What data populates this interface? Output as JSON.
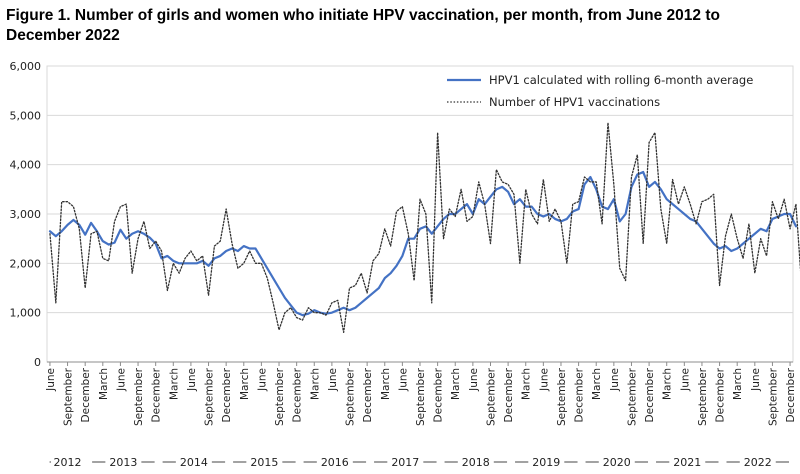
{
  "title": "Figure 1. Number of girls and women who initiate HPV vaccination, per month, from June 2012  to December 2022",
  "chart_data": {
    "type": "line",
    "title": "Figure 1. Number of girls and women who initiate HPV vaccination, per month, from June 2012  to December 2022",
    "ylim": [
      0,
      6000
    ],
    "yticks": [
      "0",
      "1,000",
      "2,000",
      "3,000",
      "4,000",
      "5,000",
      "6,000"
    ],
    "ytick_values": [
      0,
      1000,
      2000,
      3000,
      4000,
      5000,
      6000
    ],
    "grid": true,
    "legend_position": "top-right",
    "x_start": "2012-06",
    "x_end": "2022-12",
    "month_tick_labels": [
      "June",
      "September",
      "December",
      "March"
    ],
    "years": [
      "2012",
      "2013",
      "2014",
      "2015",
      "2016",
      "2017",
      "2018",
      "2019",
      "2020",
      "2021",
      "2022"
    ],
    "series": [
      {
        "name": "HPV1 calculated with rolling 6-month average",
        "style": "solid",
        "color": "#4472C4",
        "values": [
          2650,
          2550,
          2650,
          2780,
          2880,
          2780,
          2580,
          2820,
          2650,
          2450,
          2380,
          2420,
          2680,
          2500,
          2600,
          2650,
          2600,
          2520,
          2400,
          2100,
          2150,
          2050,
          2000,
          2000,
          2000,
          2000,
          2050,
          1950,
          2100,
          2150,
          2250,
          2300,
          2250,
          2350,
          2300,
          2300,
          2100,
          1900,
          1700,
          1500,
          1300,
          1150,
          1000,
          950,
          980,
          1050,
          1000,
          980,
          1000,
          1050,
          1100,
          1050,
          1100,
          1200,
          1300,
          1400,
          1500,
          1700,
          1800,
          1950,
          2150,
          2500,
          2500,
          2700,
          2750,
          2600,
          2750,
          2900,
          3000,
          3000,
          3100,
          3200,
          3000,
          3300,
          3200,
          3350,
          3500,
          3550,
          3450,
          3200,
          3300,
          3150,
          3150,
          3000,
          2950,
          3000,
          2900,
          2850,
          2900,
          3050,
          3100,
          3600,
          3750,
          3500,
          3150,
          3100,
          3300,
          2850,
          3000,
          3550,
          3800,
          3850,
          3550,
          3650,
          3500,
          3300,
          3200,
          3100,
          3000,
          2900,
          2850,
          2700,
          2550,
          2400,
          2300,
          2350,
          2250,
          2300,
          2400,
          2500,
          2600,
          2700,
          2650,
          2900,
          2950,
          3000,
          3000,
          2750
        ]
      },
      {
        "name": "Number of HPV1 vaccinations",
        "style": "dotted",
        "color": "#333333",
        "values": [
          2600,
          1200,
          3250,
          3250,
          3150,
          2700,
          1500,
          2600,
          2650,
          2100,
          2050,
          2850,
          3150,
          3200,
          1800,
          2500,
          2850,
          2300,
          2450,
          2250,
          1450,
          2000,
          1800,
          2100,
          2250,
          2050,
          2150,
          1350,
          2350,
          2450,
          3100,
          2400,
          1900,
          2000,
          2250,
          2000,
          2000,
          1700,
          1200,
          650,
          1000,
          1100,
          900,
          850,
          1100,
          1000,
          1000,
          950,
          1200,
          1250,
          600,
          1500,
          1550,
          1800,
          1400,
          2050,
          2200,
          2700,
          2350,
          3050,
          3150,
          2600,
          1650,
          3300,
          3000,
          1200,
          4650,
          2500,
          3100,
          2950,
          3500,
          2850,
          2950,
          3650,
          3200,
          2400,
          3900,
          3650,
          3600,
          3400,
          2000,
          3500,
          3000,
          2800,
          3700,
          2850,
          3100,
          2850,
          2000,
          3200,
          3250,
          3750,
          3650,
          3650,
          2800,
          4850,
          3600,
          1900,
          1650,
          3750,
          4200,
          2400,
          4450,
          4650,
          3100,
          2400,
          3700,
          3200,
          3550,
          3200,
          2800,
          3250,
          3300,
          3400,
          1550,
          2550,
          3000,
          2500,
          2100,
          2800,
          1800,
          2500,
          2150,
          3250,
          2900,
          3300,
          2700,
          3200,
          1500,
          3950,
          3500,
          2650,
          3350,
          1950
        ]
      }
    ]
  }
}
